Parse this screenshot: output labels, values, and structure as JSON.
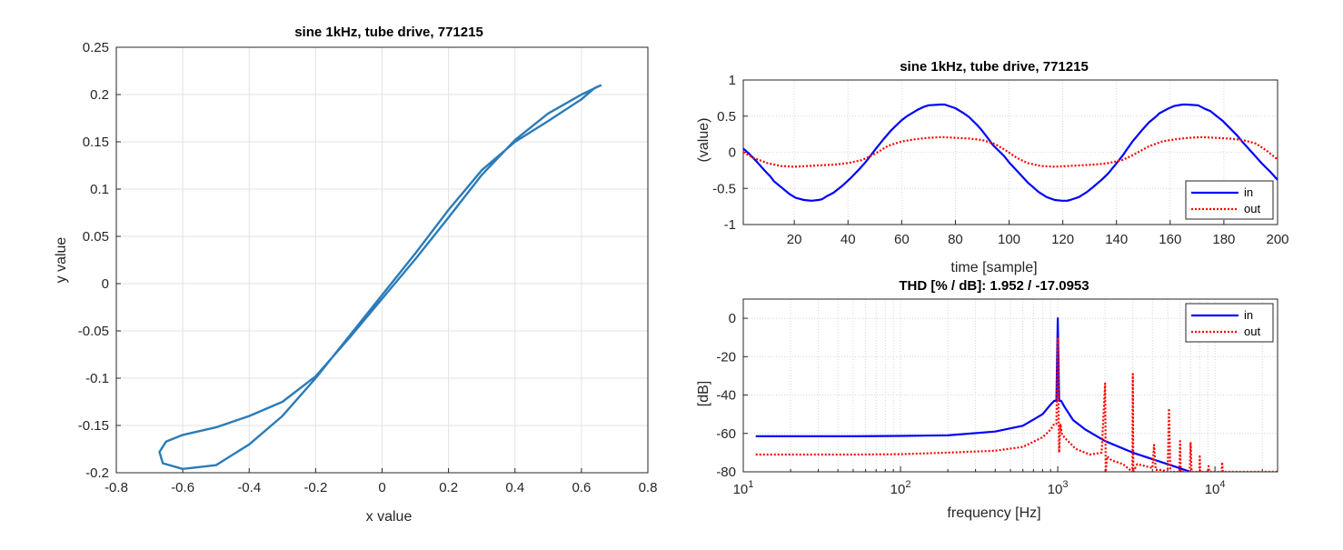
{
  "chart_data": [
    {
      "type": "line",
      "title": "sine 1kHz, tube drive, 771215",
      "xlabel": "x value",
      "ylabel": "y value",
      "xlim": [
        -0.8,
        0.8
      ],
      "ylim": [
        -0.2,
        0.25
      ],
      "xticks": [
        "-0.8",
        "-0.6",
        "-0.4",
        "-0.2",
        "0",
        "0.2",
        "0.4",
        "0.6",
        "0.8"
      ],
      "yticks": [
        "-0.2",
        "-0.15",
        "-0.1",
        "-0.05",
        "0",
        "0.05",
        "0.1",
        "0.15",
        "0.2",
        "0.25"
      ],
      "grid": true,
      "series": [
        {
          "color": "#2b7bb9",
          "x": [
            0.66,
            0.6,
            0.5,
            0.4,
            0.3,
            0.2,
            0.1,
            0.0,
            -0.1,
            -0.2,
            -0.3,
            -0.4,
            -0.5,
            -0.6,
            -0.65,
            -0.67,
            -0.66,
            -0.6,
            -0.5,
            -0.4,
            -0.3,
            -0.2,
            -0.1,
            0.0,
            0.1,
            0.2,
            0.3,
            0.4,
            0.5,
            0.6,
            0.64,
            0.66
          ],
          "y": [
            0.21,
            0.2,
            0.18,
            0.152,
            0.115,
            0.07,
            0.026,
            -0.016,
            -0.058,
            -0.098,
            -0.125,
            -0.14,
            -0.152,
            -0.16,
            -0.167,
            -0.178,
            -0.19,
            -0.196,
            -0.192,
            -0.17,
            -0.14,
            -0.1,
            -0.056,
            -0.012,
            0.032,
            0.078,
            0.12,
            0.15,
            0.172,
            0.195,
            0.207,
            0.21
          ]
        }
      ]
    },
    {
      "type": "line",
      "title": "sine 1kHz, tube drive, 771215",
      "xlabel": "time [sample]",
      "ylabel": "(value)",
      "xlim": [
        1,
        200
      ],
      "ylim": [
        -1,
        1
      ],
      "xticks": [
        "20",
        "40",
        "60",
        "80",
        "100",
        "120",
        "140",
        "160",
        "180",
        "200"
      ],
      "yticks": [
        "-1",
        "-0.5",
        "0",
        "0.5",
        "1"
      ],
      "grid": true,
      "legend": "bottom-right",
      "series": [
        {
          "name": "in",
          "color": "#0000ff",
          "style": "solid",
          "x": [
            1,
            2.9,
            6,
            8.9,
            11.2,
            12.4,
            18.3,
            20.5,
            23.6,
            26.4,
            29,
            30.3,
            32,
            34.6,
            38,
            41.2,
            44,
            46.5,
            50,
            53,
            56,
            59.9,
            62,
            66,
            68.3,
            70,
            74.4,
            76,
            80,
            83.1,
            85,
            88,
            89.5,
            92,
            94,
            98.1,
            100,
            104,
            107,
            108.9,
            111,
            114,
            117,
            119.8,
            121.7,
            122.7,
            126,
            129,
            131,
            134.8,
            137,
            140.3,
            142.4,
            143.5,
            146,
            149.8,
            152,
            154.9,
            156,
            159,
            161.5,
            164.6,
            166,
            170.4,
            173,
            175,
            177,
            179.7,
            181,
            185,
            187,
            189.9,
            191.4,
            194,
            195.9,
            197.3,
            199.7,
            200
          ],
          "y": [
            0.05,
            -0.01,
            -0.13,
            -0.25,
            -0.34,
            -0.4,
            -0.58,
            -0.63,
            -0.66,
            -0.67,
            -0.66,
            -0.65,
            -0.61,
            -0.56,
            -0.46,
            -0.35,
            -0.24,
            -0.14,
            0.03,
            0.17,
            0.3,
            0.44,
            0.5,
            0.59,
            0.63,
            0.65,
            0.66,
            0.66,
            0.61,
            0.54,
            0.49,
            0.38,
            0.32,
            0.2,
            0.1,
            -0.05,
            -0.14,
            -0.3,
            -0.42,
            -0.48,
            -0.55,
            -0.62,
            -0.66,
            -0.67,
            -0.67,
            -0.66,
            -0.62,
            -0.55,
            -0.49,
            -0.37,
            -0.29,
            -0.14,
            -0.04,
            0.02,
            0.15,
            0.32,
            0.41,
            0.5,
            0.54,
            0.6,
            0.64,
            0.66,
            0.66,
            0.65,
            0.6,
            0.57,
            0.51,
            0.43,
            0.38,
            0.23,
            0.14,
            0.02,
            -0.04,
            -0.15,
            -0.22,
            -0.27,
            -0.37,
            -0.38
          ]
        },
        {
          "name": "out",
          "color": "#ff0000",
          "style": "dotted",
          "x": [
            1,
            5,
            10,
            15,
            20,
            25,
            30,
            35,
            40,
            45,
            48,
            51,
            55,
            60,
            65,
            70,
            75,
            80,
            85,
            90,
            95,
            99,
            103,
            107,
            112,
            117,
            122,
            127,
            132,
            137,
            142,
            145,
            148,
            152,
            157,
            162,
            167,
            172,
            177,
            182,
            187,
            192,
            196,
            200
          ],
          "y": [
            0.0,
            -0.08,
            -0.15,
            -0.19,
            -0.2,
            -0.19,
            -0.18,
            -0.17,
            -0.15,
            -0.11,
            -0.06,
            0.0,
            0.09,
            0.15,
            0.18,
            0.2,
            0.21,
            0.2,
            0.19,
            0.17,
            0.11,
            0.02,
            -0.08,
            -0.15,
            -0.19,
            -0.2,
            -0.19,
            -0.18,
            -0.17,
            -0.15,
            -0.11,
            -0.06,
            0.0,
            0.08,
            0.15,
            0.18,
            0.2,
            0.21,
            0.2,
            0.19,
            0.17,
            0.12,
            0.02,
            -0.1
          ]
        }
      ]
    },
    {
      "type": "line",
      "title": "THD [% / dB]:  1.952 / -17.0953",
      "xlabel": "frequency [Hz]",
      "ylabel": "[dB]",
      "xscale": "log",
      "xlim": [
        10,
        25000
      ],
      "ylim": [
        -80,
        10
      ],
      "xticks": [
        "10^1",
        "10^2",
        "10^3",
        "10^4"
      ],
      "yticks": [
        "0",
        "-20",
        "-40",
        "-60",
        "-80"
      ],
      "grid": true,
      "legend": "top-right",
      "series": [
        {
          "name": "in",
          "color": "#0000ff",
          "style": "solid",
          "x": [
            12,
            50,
            100,
            200,
            400,
            600,
            800,
            900,
            950,
            980,
            1000,
            1020,
            1050,
            1100,
            1250,
            1500,
            2000,
            3000,
            5000,
            7000
          ],
          "y": [
            -61.5,
            -61.5,
            -61.3,
            -61,
            -59,
            -56,
            -50,
            -45,
            -43,
            -43,
            0,
            -43,
            -43,
            -46,
            -53,
            -58,
            -64,
            -70,
            -76,
            -80
          ]
        },
        {
          "name": "out",
          "color": "#ff0000",
          "style": "dotted",
          "x": [
            12,
            50,
            100,
            200,
            400,
            600,
            800,
            900,
            950,
            980,
            1000,
            1020,
            1040,
            1060,
            1100,
            1300,
            1600,
            1900,
            2000,
            2020,
            2060,
            2200,
            2600,
            2980,
            3000,
            3020,
            3200,
            3600,
            4000,
            4100,
            4200,
            4600,
            5000,
            5100,
            5200,
            5600,
            5950,
            6000,
            6050,
            6400,
            6900,
            7000,
            7100,
            7500,
            7950,
            8000,
            8050,
            8600,
            9000,
            9100,
            9200,
            10000,
            11000,
            11100,
            11200,
            12000,
            14000,
            18000,
            25000
          ],
          "y": [
            -71,
            -71,
            -70.8,
            -70,
            -69,
            -67,
            -62,
            -58,
            -55,
            -55,
            -10,
            -70,
            -55,
            -60,
            -62,
            -68,
            -71,
            -70,
            -34,
            -80,
            -72,
            -74,
            -76,
            -80,
            -29,
            -80,
            -76,
            -77,
            -78,
            -66,
            -79,
            -79,
            -80,
            -47,
            -80,
            -80,
            -80,
            -64,
            -80,
            -80,
            -80,
            -65,
            -80,
            -80,
            -80,
            -72,
            -80,
            -80,
            -80,
            -77,
            -80,
            -80,
            -80,
            -75,
            -80,
            -80,
            -80,
            -80,
            -80
          ]
        }
      ]
    }
  ]
}
